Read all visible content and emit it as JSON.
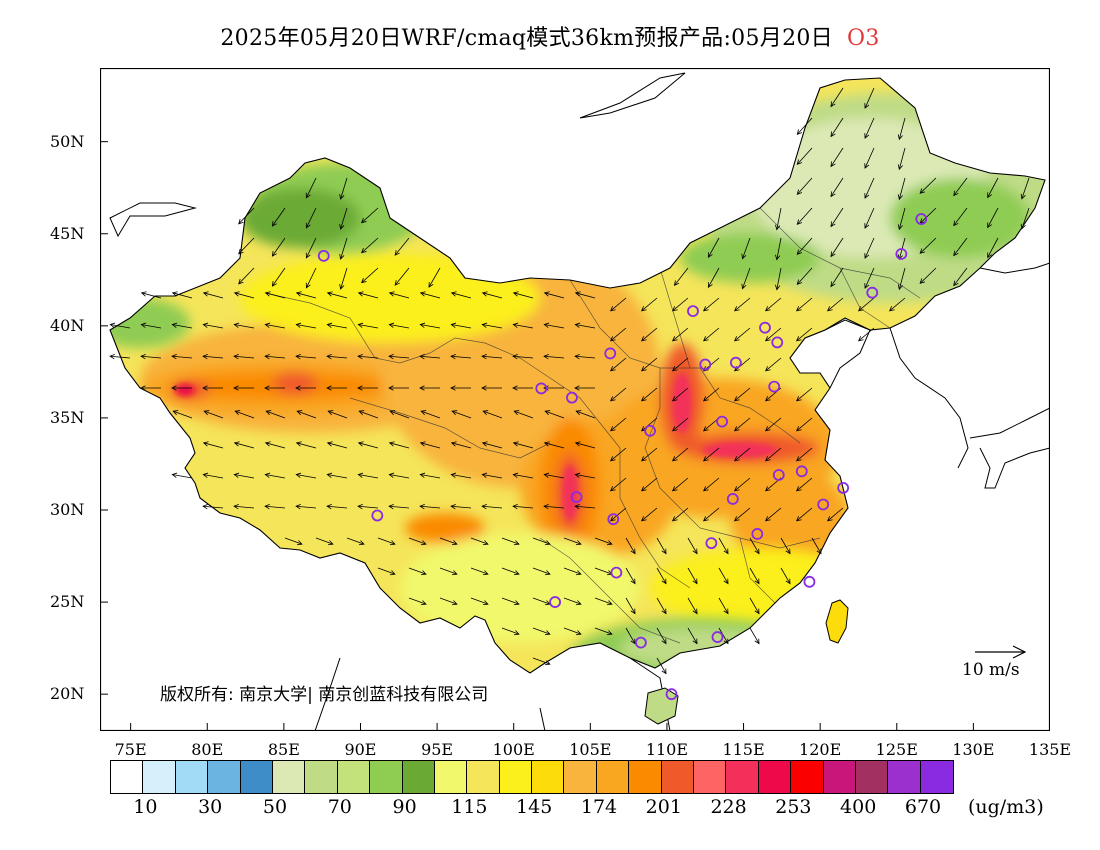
{
  "title": {
    "main": "2025年05月20日WRF/cmaq模式36km预报产品:05月20日",
    "species": "O3",
    "species_color": "#e03a3a"
  },
  "axes": {
    "lat_labels": [
      "50N",
      "45N",
      "40N",
      "35N",
      "30N",
      "25N",
      "20N"
    ],
    "lon_labels": [
      "75E",
      "80E",
      "85E",
      "90E",
      "95E",
      "100E",
      "105E",
      "110E",
      "115E",
      "120E",
      "125E",
      "130E",
      "135E"
    ],
    "lon_range": [
      73,
      135
    ],
    "lat_range": [
      18,
      54
    ]
  },
  "copyright": "版权所有: 南京大学| 南京创蓝科技有限公司",
  "wind_scale": {
    "label": "10 m/s"
  },
  "legend": {
    "unit": "(ug/m3)",
    "colors": [
      "#ffffff",
      "#d6f0fb",
      "#a2dbf5",
      "#6bb3e0",
      "#3f8dc8",
      "#dce9b5",
      "#bfdb86",
      "#c4e27c",
      "#8fcc52",
      "#6aaa34",
      "#f1f86c",
      "#f5e55a",
      "#fbef1c",
      "#fcdc0b",
      "#f8b43d",
      "#f9a620",
      "#fa8a00",
      "#f05a2a",
      "#ff6464",
      "#f3305a",
      "#ee0a4a",
      "#fb0000",
      "#c9167a",
      "#a23060",
      "#9b30cf",
      "#8a2be2"
    ],
    "labels": [
      "10",
      "30",
      "50",
      "70",
      "90",
      "115",
      "145",
      "174",
      "201",
      "228",
      "253",
      "400",
      "670"
    ]
  },
  "stations": [
    {
      "lon": 87.6,
      "lat": 43.8
    },
    {
      "lon": 91.1,
      "lat": 29.7
    },
    {
      "lon": 101.8,
      "lat": 36.6
    },
    {
      "lon": 103.8,
      "lat": 36.1
    },
    {
      "lon": 106.3,
      "lat": 38.5
    },
    {
      "lon": 111.7,
      "lat": 40.8
    },
    {
      "lon": 112.5,
      "lat": 37.9
    },
    {
      "lon": 114.5,
      "lat": 38.0
    },
    {
      "lon": 116.4,
      "lat": 39.9
    },
    {
      "lon": 117.2,
      "lat": 39.1
    },
    {
      "lon": 117.0,
      "lat": 36.7
    },
    {
      "lon": 113.6,
      "lat": 34.8
    },
    {
      "lon": 108.9,
      "lat": 34.3
    },
    {
      "lon": 104.1,
      "lat": 30.7
    },
    {
      "lon": 106.5,
      "lat": 29.5
    },
    {
      "lon": 106.7,
      "lat": 26.6
    },
    {
      "lon": 102.7,
      "lat": 25.0
    },
    {
      "lon": 108.3,
      "lat": 22.8
    },
    {
      "lon": 113.3,
      "lat": 23.1
    },
    {
      "lon": 110.3,
      "lat": 20.0
    },
    {
      "lon": 119.3,
      "lat": 26.1
    },
    {
      "lon": 115.9,
      "lat": 28.7
    },
    {
      "lon": 112.9,
      "lat": 28.2
    },
    {
      "lon": 114.3,
      "lat": 30.6
    },
    {
      "lon": 117.3,
      "lat": 31.9
    },
    {
      "lon": 118.8,
      "lat": 32.1
    },
    {
      "lon": 120.2,
      "lat": 30.3
    },
    {
      "lon": 121.5,
      "lat": 31.2
    },
    {
      "lon": 123.4,
      "lat": 41.8
    },
    {
      "lon": 125.3,
      "lat": 43.9
    },
    {
      "lon": 126.6,
      "lat": 45.8
    }
  ]
}
